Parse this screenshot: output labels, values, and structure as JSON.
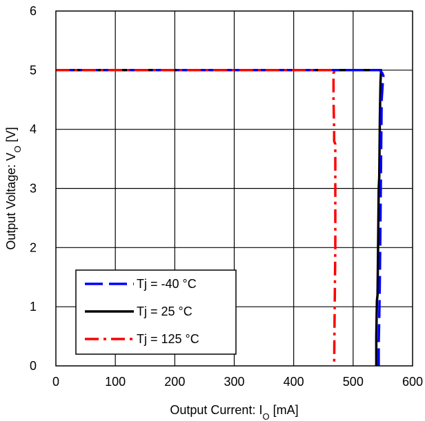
{
  "chart_data": {
    "type": "line",
    "xlabel": "Output Current: I",
    "xlabel_sub": "O",
    "xlabel_unit": " [mA]",
    "ylabel": "Output Voltage: V",
    "ylabel_sub": "O",
    "ylabel_unit": " [V]",
    "xlim": [
      0,
      600
    ],
    "ylim": [
      0,
      6
    ],
    "x_ticks": [
      0,
      100,
      200,
      300,
      400,
      500,
      600
    ],
    "y_ticks": [
      0,
      1,
      2,
      3,
      4,
      5,
      6
    ],
    "grid": true,
    "legend_position": "bottom-left",
    "series": [
      {
        "name": "Tj = -40 °C",
        "color": "#0000ff",
        "dash": "long-dash",
        "points": [
          [
            0,
            5.0
          ],
          [
            545,
            5.0
          ],
          [
            549,
            4.95
          ],
          [
            551,
            4.9
          ],
          [
            550,
            4.8
          ],
          [
            548,
            4.5
          ],
          [
            547,
            3.5
          ],
          [
            546,
            2.5
          ],
          [
            545,
            1.5
          ],
          [
            544,
            0.8
          ],
          [
            543,
            0.4
          ],
          [
            543,
            0
          ]
        ]
      },
      {
        "name": "Tj = 25 °C",
        "color": "#000000",
        "dash": "solid",
        "points": [
          [
            0,
            5.0
          ],
          [
            547,
            5.0
          ],
          [
            546,
            4.8
          ],
          [
            545,
            4.2
          ],
          [
            544,
            3.2
          ],
          [
            543,
            3.0
          ],
          [
            542,
            2.0
          ],
          [
            541,
            1.2
          ],
          [
            540,
            1.1
          ],
          [
            539,
            0.5
          ],
          [
            539,
            0
          ]
        ]
      },
      {
        "name": "Tj = 125 °C",
        "color": "#ff0000",
        "dash": "dash-dot",
        "points": [
          [
            0,
            5.0
          ],
          [
            470,
            5.0
          ],
          [
            467,
            4.95
          ],
          [
            467,
            4.5
          ],
          [
            468,
            4.0
          ],
          [
            468,
            3.8
          ],
          [
            470,
            3.75
          ],
          [
            470,
            2.0
          ],
          [
            469,
            1.0
          ],
          [
            468,
            0
          ]
        ]
      }
    ]
  }
}
